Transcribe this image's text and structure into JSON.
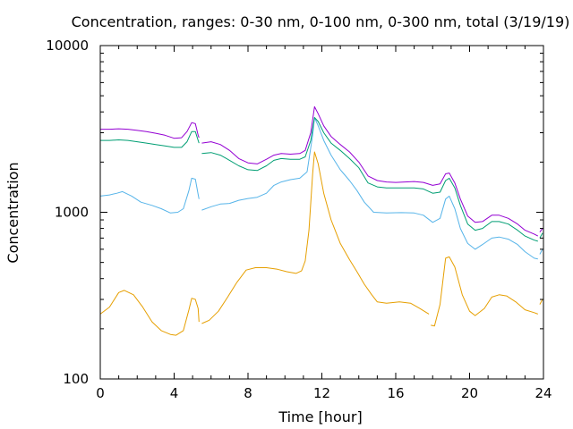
{
  "chart_data": {
    "type": "line",
    "title": "Concentration, ranges: 0-30 nm, 0-100 nm, 0-300 nm, total (3/19/19)",
    "xlabel": "Time [hour]",
    "ylabel": "Concentration",
    "xlim": [
      0,
      24
    ],
    "ylim": [
      100,
      10000
    ],
    "yscale": "log",
    "x_ticks": [
      "0",
      "4",
      "8",
      "12",
      "16",
      "20",
      "24"
    ],
    "y_ticks": [
      "100",
      "1000",
      "10000"
    ],
    "grid": false,
    "legend": "none",
    "series": [
      {
        "color": "#e69f00",
        "segments": [
          [
            [
              0,
              245
            ],
            [
              0.5,
              270
            ],
            [
              1.0,
              330
            ],
            [
              1.3,
              340
            ],
            [
              1.8,
              320
            ],
            [
              2.3,
              270
            ],
            [
              2.8,
              220
            ],
            [
              3.3,
              195
            ],
            [
              3.8,
              185
            ],
            [
              4.1,
              183
            ],
            [
              4.5,
              195
            ],
            [
              4.8,
              260
            ],
            [
              4.95,
              305
            ],
            [
              5.15,
              300
            ],
            [
              5.3,
              265
            ],
            [
              5.35,
              220
            ]
          ],
          [
            [
              5.5,
              215
            ],
            [
              5.9,
              225
            ],
            [
              6.4,
              255
            ],
            [
              6.9,
              310
            ],
            [
              7.4,
              380
            ],
            [
              7.9,
              450
            ],
            [
              8.4,
              465
            ],
            [
              9.0,
              465
            ],
            [
              9.6,
              455
            ],
            [
              10.1,
              440
            ],
            [
              10.6,
              430
            ],
            [
              10.9,
              445
            ],
            [
              11.1,
              510
            ],
            [
              11.3,
              780
            ],
            [
              11.5,
              1700
            ],
            [
              11.6,
              2300
            ],
            [
              11.8,
              1950
            ],
            [
              12.1,
              1300
            ],
            [
              12.5,
              900
            ],
            [
              13.0,
              650
            ],
            [
              13.5,
              520
            ],
            [
              13.9,
              440
            ],
            [
              14.3,
              370
            ],
            [
              14.7,
              320
            ],
            [
              15.0,
              290
            ],
            [
              15.5,
              285
            ],
            [
              16.2,
              290
            ],
            [
              16.8,
              285
            ],
            [
              17.3,
              265
            ],
            [
              17.8,
              245
            ]
          ],
          [
            [
              17.9,
              210
            ],
            [
              18.1,
              208
            ],
            [
              18.4,
              280
            ],
            [
              18.7,
              530
            ],
            [
              18.9,
              540
            ],
            [
              19.2,
              470
            ],
            [
              19.6,
              320
            ],
            [
              20.0,
              255
            ],
            [
              20.3,
              240
            ],
            [
              20.8,
              265
            ],
            [
              21.2,
              310
            ],
            [
              21.6,
              320
            ],
            [
              22.0,
              315
            ],
            [
              22.5,
              290
            ],
            [
              23.0,
              260
            ],
            [
              23.5,
              250
            ],
            [
              23.7,
              245
            ]
          ],
          [
            [
              23.8,
              280
            ],
            [
              23.95,
              300
            ]
          ]
        ]
      },
      {
        "color": "#56b4e9",
        "segments": [
          [
            [
              0,
              1250
            ],
            [
              0.5,
              1270
            ],
            [
              0.9,
              1300
            ],
            [
              1.2,
              1330
            ],
            [
              1.7,
              1250
            ],
            [
              2.2,
              1150
            ],
            [
              2.8,
              1100
            ],
            [
              3.3,
              1050
            ],
            [
              3.8,
              990
            ],
            [
              4.2,
              1000
            ],
            [
              4.5,
              1050
            ],
            [
              4.8,
              1350
            ],
            [
              4.95,
              1600
            ],
            [
              5.15,
              1580
            ],
            [
              5.3,
              1280
            ],
            [
              5.35,
              1200
            ]
          ],
          [
            [
              5.5,
              1030
            ],
            [
              6.0,
              1080
            ],
            [
              6.5,
              1120
            ],
            [
              7.0,
              1130
            ],
            [
              7.5,
              1180
            ],
            [
              8.0,
              1210
            ],
            [
              8.5,
              1230
            ],
            [
              9.0,
              1300
            ],
            [
              9.4,
              1450
            ],
            [
              9.8,
              1520
            ],
            [
              10.3,
              1570
            ],
            [
              10.8,
              1600
            ],
            [
              11.2,
              1750
            ],
            [
              11.5,
              2900
            ],
            [
              11.6,
              3700
            ],
            [
              11.8,
              3300
            ],
            [
              12.1,
              2700
            ],
            [
              12.5,
              2200
            ],
            [
              13.0,
              1800
            ],
            [
              13.5,
              1550
            ],
            [
              13.9,
              1350
            ],
            [
              14.3,
              1150
            ],
            [
              14.8,
              1000
            ],
            [
              15.5,
              990
            ],
            [
              16.3,
              995
            ],
            [
              17.0,
              990
            ],
            [
              17.5,
              960
            ],
            [
              18.0,
              870
            ],
            [
              18.4,
              920
            ],
            [
              18.7,
              1200
            ],
            [
              18.9,
              1250
            ],
            [
              19.2,
              1050
            ],
            [
              19.5,
              800
            ],
            [
              19.9,
              650
            ],
            [
              20.3,
              600
            ],
            [
              20.7,
              640
            ],
            [
              21.2,
              700
            ],
            [
              21.6,
              710
            ],
            [
              22.1,
              690
            ],
            [
              22.6,
              640
            ],
            [
              23.0,
              580
            ],
            [
              23.5,
              530
            ],
            [
              23.7,
              525
            ]
          ],
          [
            [
              23.8,
              560
            ],
            [
              23.95,
              600
            ]
          ]
        ]
      },
      {
        "color": "#009e73",
        "segments": [
          [
            [
              0,
              2700
            ],
            [
              0.5,
              2700
            ],
            [
              1.0,
              2720
            ],
            [
              1.5,
              2700
            ],
            [
              2.0,
              2650
            ],
            [
              2.5,
              2600
            ],
            [
              3.0,
              2550
            ],
            [
              3.5,
              2500
            ],
            [
              4.0,
              2450
            ],
            [
              4.4,
              2450
            ],
            [
              4.7,
              2650
            ],
            [
              4.95,
              3050
            ],
            [
              5.15,
              3050
            ],
            [
              5.3,
              2700
            ],
            [
              5.35,
              2600
            ]
          ],
          [
            [
              5.5,
              2250
            ],
            [
              6.0,
              2280
            ],
            [
              6.5,
              2200
            ],
            [
              7.0,
              2050
            ],
            [
              7.5,
              1900
            ],
            [
              8.0,
              1800
            ],
            [
              8.5,
              1780
            ],
            [
              9.0,
              1900
            ],
            [
              9.4,
              2050
            ],
            [
              9.8,
              2100
            ],
            [
              10.3,
              2080
            ],
            [
              10.8,
              2080
            ],
            [
              11.1,
              2150
            ],
            [
              11.4,
              2700
            ],
            [
              11.6,
              3700
            ],
            [
              11.8,
              3500
            ],
            [
              12.1,
              3000
            ],
            [
              12.5,
              2600
            ],
            [
              13.0,
              2350
            ],
            [
              13.5,
              2100
            ],
            [
              14.0,
              1850
            ],
            [
              14.5,
              1500
            ],
            [
              15.0,
              1420
            ],
            [
              15.5,
              1400
            ],
            [
              16.0,
              1400
            ],
            [
              16.5,
              1400
            ],
            [
              17.0,
              1400
            ],
            [
              17.5,
              1380
            ],
            [
              18.0,
              1300
            ],
            [
              18.4,
              1320
            ],
            [
              18.7,
              1550
            ],
            [
              18.9,
              1600
            ],
            [
              19.2,
              1400
            ],
            [
              19.5,
              1100
            ],
            [
              19.9,
              850
            ],
            [
              20.3,
              780
            ],
            [
              20.7,
              800
            ],
            [
              21.2,
              880
            ],
            [
              21.6,
              880
            ],
            [
              22.1,
              850
            ],
            [
              22.6,
              780
            ],
            [
              23.0,
              720
            ],
            [
              23.5,
              680
            ],
            [
              23.7,
              670
            ]
          ],
          [
            [
              23.8,
              700
            ],
            [
              23.95,
              750
            ]
          ]
        ]
      },
      {
        "color": "#9400d3",
        "segments": [
          [
            [
              0,
              3150
            ],
            [
              0.5,
              3150
            ],
            [
              1.0,
              3170
            ],
            [
              1.5,
              3150
            ],
            [
              2.0,
              3100
            ],
            [
              2.5,
              3050
            ],
            [
              3.0,
              2980
            ],
            [
              3.5,
              2900
            ],
            [
              4.0,
              2780
            ],
            [
              4.4,
              2800
            ],
            [
              4.7,
              3050
            ],
            [
              4.95,
              3450
            ],
            [
              5.15,
              3400
            ],
            [
              5.3,
              2900
            ],
            [
              5.35,
              2800
            ]
          ],
          [
            [
              5.5,
              2600
            ],
            [
              6.0,
              2650
            ],
            [
              6.5,
              2550
            ],
            [
              7.0,
              2350
            ],
            [
              7.5,
              2100
            ],
            [
              8.0,
              1980
            ],
            [
              8.5,
              1950
            ],
            [
              9.0,
              2080
            ],
            [
              9.4,
              2200
            ],
            [
              9.8,
              2250
            ],
            [
              10.3,
              2230
            ],
            [
              10.8,
              2250
            ],
            [
              11.1,
              2350
            ],
            [
              11.4,
              3000
            ],
            [
              11.6,
              4300
            ],
            [
              11.8,
              3900
            ],
            [
              12.1,
              3300
            ],
            [
              12.5,
              2850
            ],
            [
              13.0,
              2550
            ],
            [
              13.5,
              2300
            ],
            [
              14.0,
              2000
            ],
            [
              14.5,
              1650
            ],
            [
              15.0,
              1550
            ],
            [
              15.5,
              1520
            ],
            [
              16.0,
              1510
            ],
            [
              16.5,
              1520
            ],
            [
              17.0,
              1530
            ],
            [
              17.5,
              1510
            ],
            [
              18.0,
              1450
            ],
            [
              18.4,
              1480
            ],
            [
              18.7,
              1700
            ],
            [
              18.9,
              1720
            ],
            [
              19.2,
              1500
            ],
            [
              19.5,
              1200
            ],
            [
              19.9,
              950
            ],
            [
              20.3,
              870
            ],
            [
              20.7,
              880
            ],
            [
              21.2,
              960
            ],
            [
              21.6,
              960
            ],
            [
              22.1,
              920
            ],
            [
              22.6,
              850
            ],
            [
              23.0,
              780
            ],
            [
              23.5,
              740
            ],
            [
              23.7,
              720
            ]
          ],
          [
            [
              23.8,
              760
            ],
            [
              23.95,
              800
            ]
          ]
        ]
      }
    ]
  }
}
